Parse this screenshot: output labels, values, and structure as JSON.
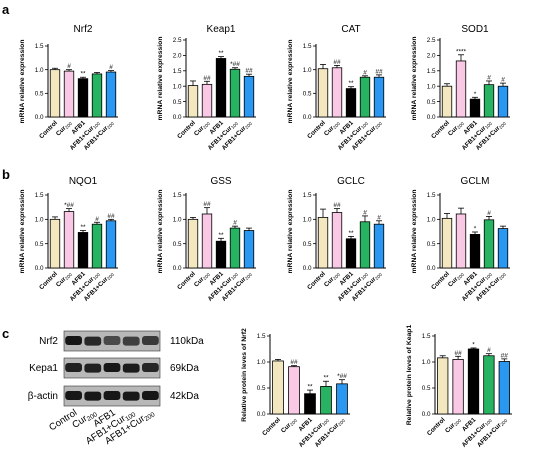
{
  "panel_letters": [
    "a",
    "b",
    "c"
  ],
  "colors": {
    "Control": "#f3e7bf",
    "Cur200": "#f8c8e4",
    "AFB1": "#000000",
    "AFB1+Cur100": "#27b362",
    "AFB1+Cur200": "#2a97f0"
  },
  "groups": [
    "Control",
    "Cur200",
    "AFB1",
    "AFB1+Cur100",
    "AFB1+Cur200"
  ],
  "chart_data": [
    {
      "id": "nrf2",
      "type": "bar",
      "title": "Nrf2",
      "ylabel": "mRNA relative expression",
      "ylim": [
        0,
        1.5
      ],
      "ticks": [
        "0.0",
        "0.5",
        "1.0",
        "1.5"
      ],
      "categories": [
        "Control",
        "Cur200",
        "AFB1",
        "AFB1+Cur100",
        "AFB1+Cur200"
      ],
      "values": [
        1.0,
        0.97,
        0.81,
        0.91,
        0.95
      ],
      "errors": [
        0.03,
        0.03,
        0.03,
        0.03,
        0.03
      ],
      "sig": [
        "",
        "#",
        "**",
        "",
        "#"
      ]
    },
    {
      "id": "keap1",
      "type": "bar",
      "title": "Keap1",
      "ylabel": "mRNA relative expression",
      "ylim": [
        0,
        2.5
      ],
      "ticks": [
        "0.0",
        "0.5",
        "1.0",
        "1.5",
        "2.0",
        "2.5"
      ],
      "categories": [
        "Control",
        "Cur200",
        "AFB1",
        "AFB1+Cur100",
        "AFB1+Cur200"
      ],
      "values": [
        1.02,
        1.06,
        1.9,
        1.55,
        1.32
      ],
      "errors": [
        0.15,
        0.1,
        0.06,
        0.05,
        0.07
      ],
      "sig": [
        "",
        "##",
        "**",
        "*##",
        "##"
      ]
    },
    {
      "id": "cat",
      "type": "bar",
      "title": "CAT",
      "ylabel": "mRNA relative expression",
      "ylim": [
        0,
        1.5
      ],
      "ticks": [
        "0.0",
        "0.5",
        "1.0",
        "1.5"
      ],
      "categories": [
        "Control",
        "Cur200",
        "AFB1",
        "AFB1+Cur100",
        "AFB1+Cur200"
      ],
      "values": [
        1.02,
        1.04,
        0.6,
        0.84,
        0.84
      ],
      "errors": [
        0.09,
        0.05,
        0.04,
        0.03,
        0.05
      ],
      "sig": [
        "",
        "##",
        "**",
        "#",
        "##"
      ]
    },
    {
      "id": "sod1",
      "type": "bar",
      "title": "SOD1",
      "ylabel": "mRNA relative expression",
      "ylim": [
        0,
        2.5
      ],
      "ticks": [
        "0.0",
        "0.5",
        "1.0",
        "1.5",
        "2.0",
        "2.5"
      ],
      "categories": [
        "Control",
        "Cur200",
        "AFB1",
        "AFB1+Cur100",
        "AFB1+Cur200"
      ],
      "values": [
        1.0,
        1.82,
        0.58,
        1.05,
        1.0
      ],
      "errors": [
        0.08,
        0.2,
        0.06,
        0.12,
        0.1
      ],
      "sig": [
        "",
        "****",
        "*",
        "#",
        "#"
      ]
    },
    {
      "id": "nqo1",
      "type": "bar",
      "title": "NQO1",
      "ylabel": "mRNA relative expression",
      "ylim": [
        0,
        1.5
      ],
      "ticks": [
        "0.0",
        "0.5",
        "1.0",
        "1.5"
      ],
      "categories": [
        "Control",
        "Cur200",
        "AFB1",
        "AFB1+Cur100",
        "AFB1+Cur200"
      ],
      "values": [
        1.0,
        1.16,
        0.73,
        0.9,
        0.97
      ],
      "errors": [
        0.05,
        0.06,
        0.04,
        0.04,
        0.03
      ],
      "sig": [
        "",
        "*##",
        "**",
        "#",
        "##"
      ]
    },
    {
      "id": "gss",
      "type": "bar",
      "title": "GSS",
      "ylabel": "mRNA relative expression",
      "ylim": [
        0,
        1.5
      ],
      "ticks": [
        "0.0",
        "0.5",
        "1.0",
        "1.5"
      ],
      "categories": [
        "Control",
        "Cur200",
        "AFB1",
        "AFB1+Cur100",
        "AFB1+Cur200"
      ],
      "values": [
        1.0,
        1.11,
        0.55,
        0.82,
        0.77
      ],
      "errors": [
        0.04,
        0.13,
        0.06,
        0.04,
        0.05
      ],
      "sig": [
        "",
        "##",
        "**",
        "#",
        ""
      ]
    },
    {
      "id": "gclc",
      "type": "bar",
      "title": "GCLC",
      "ylabel": "mRNA relative expression",
      "ylim": [
        0,
        1.5
      ],
      "ticks": [
        "0.0",
        "0.5",
        "1.0",
        "1.5"
      ],
      "categories": [
        "Control",
        "Cur200",
        "AFB1",
        "AFB1+Cur100",
        "AFB1+Cur200"
      ],
      "values": [
        1.04,
        1.14,
        0.6,
        0.95,
        0.9
      ],
      "errors": [
        0.17,
        0.08,
        0.05,
        0.12,
        0.07
      ],
      "sig": [
        "",
        "##",
        "**",
        "#",
        "#"
      ]
    },
    {
      "id": "gclm",
      "type": "bar",
      "title": "GCLM",
      "ylabel": "mRNA relative expression",
      "ylim": [
        0,
        1.5
      ],
      "ticks": [
        "0.0",
        "0.5",
        "1.0",
        "1.5"
      ],
      "categories": [
        "Control",
        "Cur200",
        "AFB1",
        "AFB1+Cur100",
        "AFB1+Cur200"
      ],
      "values": [
        1.02,
        1.11,
        0.69,
        0.99,
        0.81
      ],
      "errors": [
        0.1,
        0.12,
        0.05,
        0.07,
        0.05
      ],
      "sig": [
        "",
        "",
        "*",
        "#",
        ""
      ]
    },
    {
      "id": "prot-nrf2",
      "type": "bar",
      "title": "",
      "ylabel": "Relative protein leves of Nrf2",
      "ylim": [
        0,
        1.5
      ],
      "ticks": [
        "0.0",
        "0.5",
        "1.0",
        "1.5"
      ],
      "categories": [
        "Control",
        "Cur200",
        "AFB1",
        "AFB1+Cur100",
        "AFB1+Cur200"
      ],
      "values": [
        1.02,
        0.91,
        0.39,
        0.53,
        0.58
      ],
      "errors": [
        0.03,
        0.02,
        0.07,
        0.1,
        0.08
      ],
      "sig": [
        "",
        "##",
        "**",
        "**",
        "*##"
      ]
    },
    {
      "id": "prot-keap1",
      "type": "bar",
      "title": "",
      "ylabel": "Relative protein leves of Keap1",
      "ylim": [
        0,
        1.5
      ],
      "ticks": [
        "0.0",
        "0.5",
        "1.0",
        "1.5"
      ],
      "categories": [
        "Control",
        "Cur200",
        "AFB1",
        "AFB1+Cur100",
        "AFB1+Cur200"
      ],
      "values": [
        1.08,
        1.05,
        1.25,
        1.12,
        1.01
      ],
      "errors": [
        0.04,
        0.06,
        0.02,
        0.04,
        0.05
      ],
      "sig": [
        "",
        "##",
        "*",
        "#",
        "##"
      ]
    }
  ],
  "blot": {
    "bands": [
      {
        "label": "Nrf2",
        "kda": "110kDa",
        "intensity": [
          0.95,
          0.8,
          0.5,
          0.6,
          0.65
        ]
      },
      {
        "label": "Kepa1",
        "kda": "69kDa",
        "intensity": [
          0.85,
          0.85,
          0.95,
          0.9,
          0.82
        ]
      },
      {
        "label": "β-actin",
        "kda": "42kDa",
        "intensity": [
          0.95,
          0.95,
          0.95,
          0.95,
          0.95
        ]
      }
    ],
    "lanes": [
      "Control",
      "Cur200",
      "AFB1",
      "AFB1+Cur100",
      "AFB1+Cur200"
    ]
  }
}
